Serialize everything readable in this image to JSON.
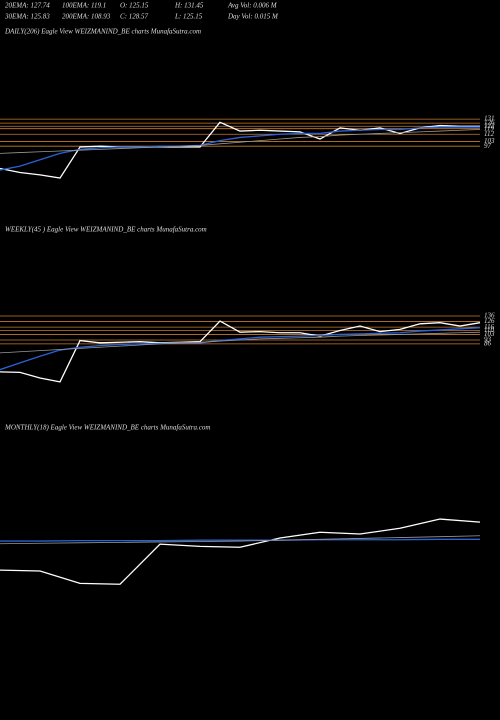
{
  "header": {
    "lines": [
      [
        "20EMA: 127.74",
        "100EMA: 119.1",
        "O: 125.15",
        "H: 131.45",
        "Avg Vol: 0.006  M"
      ],
      [
        "30EMA: 125.83",
        "200EMA: 108.93",
        "C: 128.57",
        "L: 125.15",
        "Day Vol: 0.015  M"
      ]
    ]
  },
  "chart_data": [
    {
      "type": "line",
      "title": "DAILY(206) Eagle  View  WEIZMANIND_BE charts MunafaSutra.com",
      "ylim": [
        42,
        155
      ],
      "yticks": [
        131,
        126,
        122,
        119,
        112,
        103,
        97
      ],
      "level_color": "#c87a28",
      "series": [
        {
          "name": "Price",
          "color": "#ffffff",
          "values": [
            69,
            64,
            61,
            57,
            96,
            97,
            96,
            96,
            96,
            96,
            96,
            127,
            116,
            117,
            116,
            115,
            106,
            120,
            117,
            120,
            113,
            120,
            123,
            122,
            122
          ]
        },
        {
          "name": "EMA",
          "color": "#2a62d8",
          "values": [
            67,
            72,
            80,
            88,
            93,
            95,
            96,
            96,
            97,
            97,
            98,
            104,
            108,
            110,
            112,
            113,
            113,
            116,
            117,
            118,
            118,
            120,
            121,
            121,
            121
          ]
        },
        {
          "name": "Long EMA",
          "color": "#9a9a9a",
          "values": [
            88,
            89,
            90,
            91,
            92,
            93,
            94,
            95,
            96,
            97,
            98,
            100,
            102,
            104,
            106,
            108,
            109,
            111,
            112,
            113,
            114,
            115,
            116,
            117,
            118
          ]
        }
      ]
    },
    {
      "type": "line",
      "title": "WEEKLY(45                 ) Eagle  View  WEIZMANIND_BE charts MunafaSutra.com",
      "ylim": [
        -86,
        272
      ],
      "yticks": [
        136,
        126,
        116,
        110,
        103,
        93,
        86
      ],
      "level_color": "#c87a28",
      "series": [
        {
          "name": "Price",
          "color": "#ffffff",
          "values": [
            36,
            35,
            25,
            18,
            92,
            88,
            89,
            90,
            88,
            89,
            90,
            127,
            107,
            108,
            106,
            106,
            100,
            110,
            118,
            108,
            112,
            122,
            124,
            118,
            124
          ]
        },
        {
          "name": "EMA",
          "color": "#2a62d8",
          "values": [
            40,
            52,
            64,
            75,
            80,
            83,
            85,
            86,
            87,
            88,
            88,
            92,
            95,
            98,
            99,
            100,
            101,
            103,
            104,
            105,
            106,
            109,
            111,
            113,
            115
          ]
        },
        {
          "name": "Long EMA",
          "color": "#9a9a9a",
          "values": [
            70,
            72,
            74,
            76,
            78,
            80,
            82,
            84,
            86,
            88,
            89,
            91,
            93,
            95,
            96,
            97,
            98,
            100,
            101,
            102,
            103,
            104,
            105,
            106,
            107
          ]
        }
      ]
    },
    {
      "type": "line",
      "title": "MONTHLY(18) Eagle  View  WEIZMANIND_BE charts MunafaSutra.com",
      "ylim": [
        -220,
        302
      ],
      "yticks": [],
      "level_color": "#c87a28",
      "series": [
        {
          "name": "Price",
          "color": "#ffffff",
          "values": [
            52,
            50,
            22,
            20,
            111,
            106,
            104,
            125,
            138,
            134,
            147,
            168,
            161
          ]
        },
        {
          "name": "EMA",
          "color": "#2a62d8",
          "values": [
            118,
            118,
            119,
            119,
            119,
            120,
            120,
            120,
            121,
            121,
            121,
            122,
            122
          ]
        },
        {
          "name": "Long EMA",
          "color": "#9a9a9a",
          "values": [
            112,
            113,
            114,
            115,
            116,
            117,
            118,
            120,
            122,
            124,
            126,
            128,
            130
          ]
        }
      ]
    }
  ]
}
